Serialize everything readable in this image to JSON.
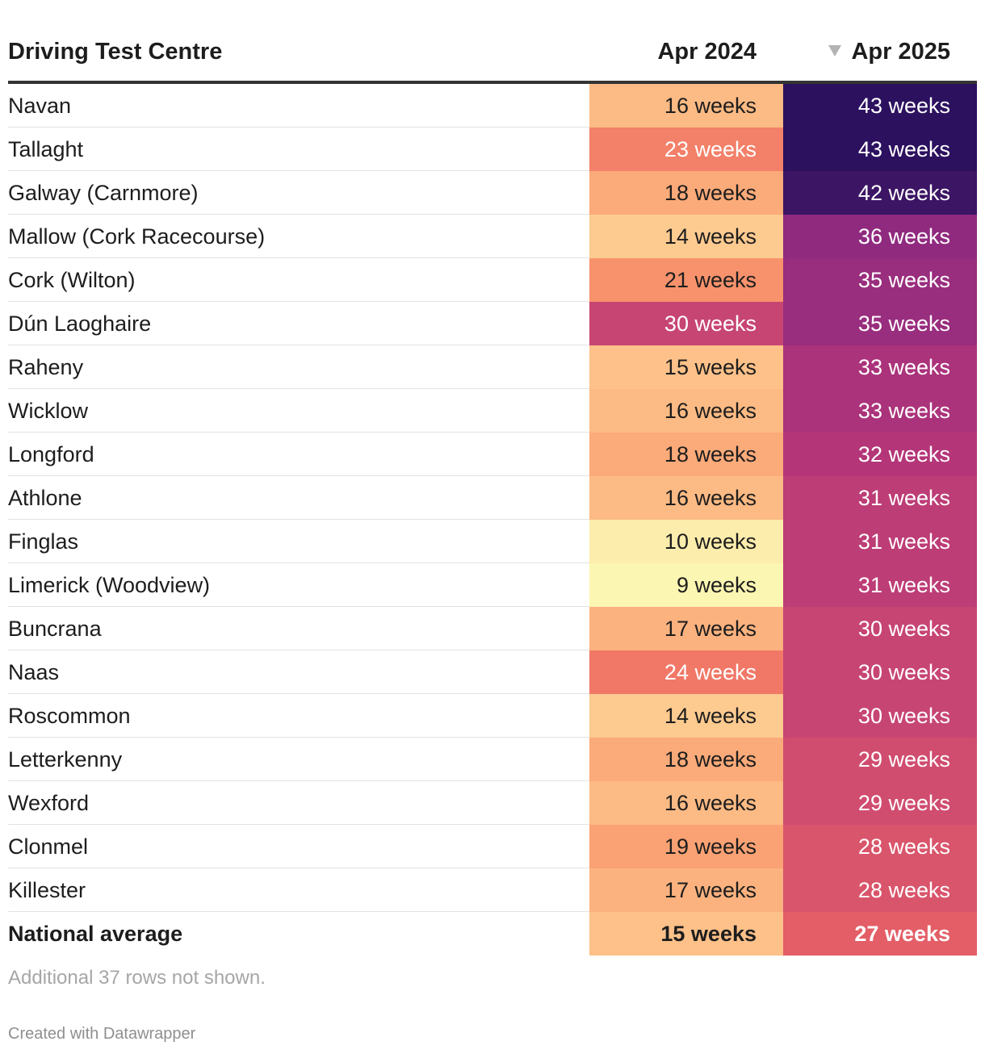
{
  "chart_data": {
    "type": "table",
    "title": "",
    "columns": [
      "Driving Test Centre",
      "Apr 2024",
      "Apr 2025"
    ],
    "sorted_column": "Apr 2025",
    "sort_order": "descending",
    "unit_suffix": " weeks",
    "rows": [
      {
        "centre": "Navan",
        "apr_2024": "16 weeks",
        "apr_2025": "43 weeks",
        "v2024": 16,
        "v2025": 43
      },
      {
        "centre": "Tallaght",
        "apr_2024": "23 weeks",
        "apr_2025": "43 weeks",
        "v2024": 23,
        "v2025": 43
      },
      {
        "centre": "Galway (Carnmore)",
        "apr_2024": "18 weeks",
        "apr_2025": "42 weeks",
        "v2024": 18,
        "v2025": 42
      },
      {
        "centre": "Mallow (Cork Racecourse)",
        "apr_2024": "14 weeks",
        "apr_2025": "36 weeks",
        "v2024": 14,
        "v2025": 36
      },
      {
        "centre": "Cork (Wilton)",
        "apr_2024": "21 weeks",
        "apr_2025": "35 weeks",
        "v2024": 21,
        "v2025": 35
      },
      {
        "centre": "Dún Laoghaire",
        "apr_2024": "30 weeks",
        "apr_2025": "35 weeks",
        "v2024": 30,
        "v2025": 35
      },
      {
        "centre": "Raheny",
        "apr_2024": "15 weeks",
        "apr_2025": "33 weeks",
        "v2024": 15,
        "v2025": 33
      },
      {
        "centre": "Wicklow",
        "apr_2024": "16 weeks",
        "apr_2025": "33 weeks",
        "v2024": 16,
        "v2025": 33
      },
      {
        "centre": "Longford",
        "apr_2024": "18 weeks",
        "apr_2025": "32 weeks",
        "v2024": 18,
        "v2025": 32
      },
      {
        "centre": "Athlone",
        "apr_2024": "16 weeks",
        "apr_2025": "31 weeks",
        "v2024": 16,
        "v2025": 31
      },
      {
        "centre": "Finglas",
        "apr_2024": "10 weeks",
        "apr_2025": "31 weeks",
        "v2024": 10,
        "v2025": 31
      },
      {
        "centre": "Limerick (Woodview)",
        "apr_2024": "9 weeks",
        "apr_2025": "31 weeks",
        "v2024": 9,
        "v2025": 31
      },
      {
        "centre": "Buncrana",
        "apr_2024": "17 weeks",
        "apr_2025": "30 weeks",
        "v2024": 17,
        "v2025": 30
      },
      {
        "centre": "Naas",
        "apr_2024": "24 weeks",
        "apr_2025": "30 weeks",
        "v2024": 24,
        "v2025": 30
      },
      {
        "centre": "Roscommon",
        "apr_2024": "14 weeks",
        "apr_2025": "30 weeks",
        "v2024": 14,
        "v2025": 30
      },
      {
        "centre": "Letterkenny",
        "apr_2024": "18 weeks",
        "apr_2025": "29 weeks",
        "v2024": 18,
        "v2025": 29
      },
      {
        "centre": "Wexford",
        "apr_2024": "16 weeks",
        "apr_2025": "29 weeks",
        "v2024": 16,
        "v2025": 29
      },
      {
        "centre": "Clonmel",
        "apr_2024": "19 weeks",
        "apr_2025": "28 weeks",
        "v2024": 19,
        "v2025": 28
      },
      {
        "centre": "Killester",
        "apr_2024": "17 weeks",
        "apr_2025": "28 weeks",
        "v2024": 17,
        "v2025": 28
      },
      {
        "centre": "National average",
        "apr_2024": "15 weeks",
        "apr_2025": "27 weeks",
        "v2024": 15,
        "v2025": 27,
        "bold": true
      }
    ],
    "color_scale": {
      "domain": [
        9,
        43
      ],
      "stops": [
        "#fcf6b3",
        "#fdc48b",
        "#f9986d",
        "#ec6663",
        "#b73779",
        "#842681",
        "#2c115f"
      ]
    },
    "footnote": "Additional 37 rows not shown.",
    "credit": "Created with Datawrapper"
  }
}
